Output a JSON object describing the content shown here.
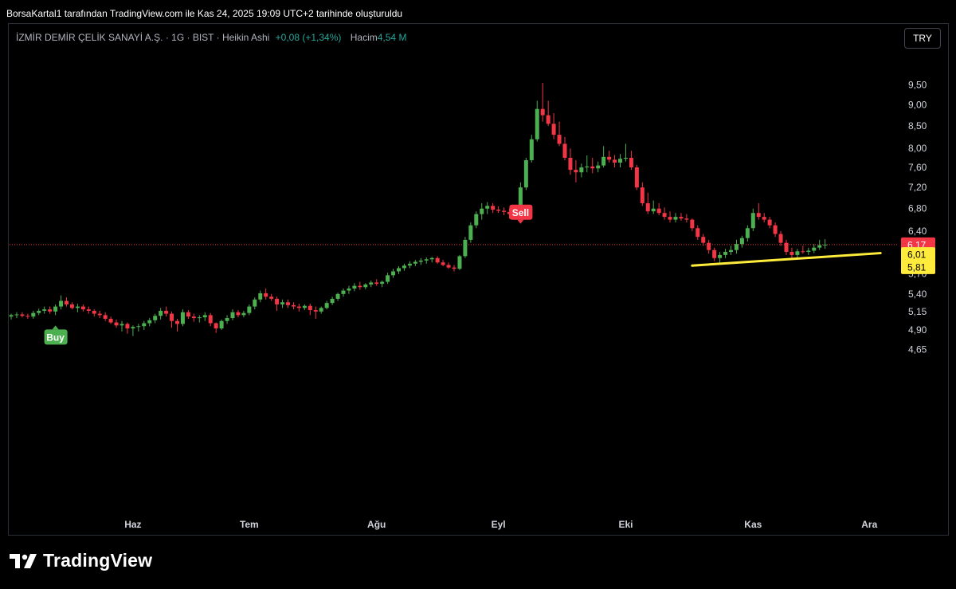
{
  "caption": "BorsaKartal1 tarafından TradingView.com ile Kas 24, 2025 19:09 UTC+2 tarihinde oluşturuldu",
  "legend": {
    "symbol": "İZMİR DEMİR ÇELİK SANAYİ A.Ş. · 1G · BIST · Heikin Ashi",
    "change": "+0,08 (+1,34%)",
    "volume_label": "Hacim",
    "volume_value": "4,54 M"
  },
  "currency_button": "TRY",
  "brand": "TradingView",
  "colors": {
    "up": "#4caf50",
    "down": "#f23645",
    "trendline": "#ffeb3b",
    "current_price_line": "#f23645",
    "axis_text": "#d1d4dc"
  },
  "chart_data": {
    "type": "candlestick",
    "style": "Heikin Ashi",
    "x_ticks": [
      {
        "label": "Haz",
        "index": 22
      },
      {
        "label": "Tem",
        "index": 43
      },
      {
        "label": "Ağu",
        "index": 66
      },
      {
        "label": "Eyl",
        "index": 88
      },
      {
        "label": "Eki",
        "index": 111
      },
      {
        "label": "Kas",
        "index": 134
      },
      {
        "label": "Ara",
        "index": 155
      }
    ],
    "y_ticks": [
      "9,50",
      "9,00",
      "8,50",
      "8,00",
      "7,60",
      "7,20",
      "6,80",
      "6,40",
      "5,70",
      "5,40",
      "5,15",
      "4,90",
      "4,65"
    ],
    "y_tick_values": [
      9.5,
      9.0,
      8.5,
      8.0,
      7.6,
      7.2,
      6.8,
      6.4,
      5.7,
      5.4,
      5.15,
      4.9,
      4.65
    ],
    "scale": "log",
    "price_labels": [
      {
        "text": "6,17",
        "value": 6.17,
        "kind": "current"
      },
      {
        "text": "6,01",
        "value": 6.01,
        "kind": "trendline"
      },
      {
        "text": "5,81",
        "value": 5.81,
        "kind": "trendline"
      }
    ],
    "signals": [
      {
        "text": "Buy",
        "index": 8,
        "kind": "buy"
      },
      {
        "text": "Sell",
        "index": 92,
        "kind": "sell"
      }
    ],
    "trendline": {
      "from": {
        "index": 123,
        "value": 5.83
      },
      "to": {
        "index": 157,
        "value": 6.03
      }
    },
    "candles": [
      [
        5.08,
        5.12,
        5.04,
        5.1
      ],
      [
        5.1,
        5.14,
        5.06,
        5.11
      ],
      [
        5.11,
        5.14,
        5.07,
        5.09
      ],
      [
        5.09,
        5.12,
        5.05,
        5.08
      ],
      [
        5.08,
        5.16,
        5.05,
        5.13
      ],
      [
        5.13,
        5.19,
        5.1,
        5.16
      ],
      [
        5.16,
        5.22,
        5.12,
        5.18
      ],
      [
        5.18,
        5.22,
        5.12,
        5.15
      ],
      [
        5.15,
        5.25,
        5.1,
        5.22
      ],
      [
        5.22,
        5.38,
        5.18,
        5.3
      ],
      [
        5.3,
        5.35,
        5.22,
        5.25
      ],
      [
        5.25,
        5.28,
        5.18,
        5.2
      ],
      [
        5.2,
        5.26,
        5.14,
        5.22
      ],
      [
        5.22,
        5.25,
        5.15,
        5.18
      ],
      [
        5.18,
        5.22,
        5.12,
        5.16
      ],
      [
        5.16,
        5.18,
        5.08,
        5.12
      ],
      [
        5.12,
        5.16,
        5.06,
        5.1
      ],
      [
        5.1,
        5.14,
        5.02,
        5.05
      ],
      [
        5.05,
        5.08,
        4.98,
        5.0
      ],
      [
        5.0,
        5.04,
        4.93,
        4.96
      ],
      [
        4.96,
        5.02,
        4.88,
        4.98
      ],
      [
        4.98,
        5.0,
        4.85,
        4.92
      ],
      [
        4.92,
        4.96,
        4.82,
        4.94
      ],
      [
        4.94,
        4.98,
        4.88,
        4.95
      ],
      [
        4.95,
        5.02,
        4.9,
        4.99
      ],
      [
        4.99,
        5.06,
        4.95,
        5.03
      ],
      [
        5.03,
        5.12,
        4.99,
        5.09
      ],
      [
        5.09,
        5.2,
        5.04,
        5.16
      ],
      [
        5.16,
        5.22,
        5.08,
        5.12
      ],
      [
        5.12,
        5.15,
        4.93,
        5.02
      ],
      [
        5.02,
        5.05,
        4.88,
        4.98
      ],
      [
        4.98,
        5.18,
        4.95,
        5.14
      ],
      [
        5.14,
        5.17,
        5.05,
        5.08
      ],
      [
        5.08,
        5.12,
        5.01,
        5.06
      ],
      [
        5.06,
        5.1,
        5.0,
        5.07
      ],
      [
        5.07,
        5.14,
        5.02,
        5.1
      ],
      [
        5.1,
        5.13,
        4.95,
        4.99
      ],
      [
        4.99,
        5.0,
        4.86,
        4.92
      ],
      [
        4.92,
        5.04,
        4.9,
        5.02
      ],
      [
        5.02,
        5.1,
        4.98,
        5.06
      ],
      [
        5.06,
        5.18,
        5.03,
        5.14
      ],
      [
        5.14,
        5.17,
        5.07,
        5.1
      ],
      [
        5.1,
        5.16,
        5.07,
        5.13
      ],
      [
        5.13,
        5.25,
        5.1,
        5.22
      ],
      [
        5.22,
        5.35,
        5.18,
        5.32
      ],
      [
        5.32,
        5.45,
        5.28,
        5.41
      ],
      [
        5.41,
        5.48,
        5.32,
        5.36
      ],
      [
        5.36,
        5.4,
        5.3,
        5.33
      ],
      [
        5.33,
        5.36,
        5.16,
        5.25
      ],
      [
        5.25,
        5.32,
        5.2,
        5.28
      ],
      [
        5.28,
        5.32,
        5.2,
        5.24
      ],
      [
        5.24,
        5.28,
        5.18,
        5.22
      ],
      [
        5.22,
        5.26,
        5.15,
        5.2
      ],
      [
        5.2,
        5.25,
        5.17,
        5.23
      ],
      [
        5.23,
        5.26,
        5.1,
        5.17
      ],
      [
        5.17,
        5.22,
        5.05,
        5.15
      ],
      [
        5.15,
        5.22,
        5.12,
        5.2
      ],
      [
        5.2,
        5.3,
        5.18,
        5.27
      ],
      [
        5.27,
        5.36,
        5.24,
        5.33
      ],
      [
        5.33,
        5.42,
        5.3,
        5.4
      ],
      [
        5.4,
        5.48,
        5.36,
        5.45
      ],
      [
        5.45,
        5.52,
        5.4,
        5.48
      ],
      [
        5.48,
        5.56,
        5.44,
        5.52
      ],
      [
        5.52,
        5.58,
        5.46,
        5.5
      ],
      [
        5.5,
        5.56,
        5.47,
        5.54
      ],
      [
        5.54,
        5.6,
        5.5,
        5.57
      ],
      [
        5.57,
        5.62,
        5.52,
        5.55
      ],
      [
        5.55,
        5.6,
        5.5,
        5.58
      ],
      [
        5.58,
        5.72,
        5.55,
        5.68
      ],
      [
        5.68,
        5.78,
        5.64,
        5.74
      ],
      [
        5.74,
        5.82,
        5.7,
        5.79
      ],
      [
        5.79,
        5.86,
        5.75,
        5.83
      ],
      [
        5.83,
        5.9,
        5.79,
        5.86
      ],
      [
        5.86,
        5.92,
        5.82,
        5.89
      ],
      [
        5.89,
        5.95,
        5.84,
        5.91
      ],
      [
        5.91,
        5.96,
        5.86,
        5.93
      ],
      [
        5.93,
        5.97,
        5.88,
        5.95
      ],
      [
        5.95,
        5.98,
        5.86,
        5.88
      ],
      [
        5.88,
        5.92,
        5.82,
        5.84
      ],
      [
        5.84,
        5.88,
        5.78,
        5.8
      ],
      [
        5.8,
        5.84,
        5.74,
        5.78
      ],
      [
        5.78,
        6.0,
        5.76,
        5.98
      ],
      [
        5.98,
        6.3,
        5.95,
        6.25
      ],
      [
        6.25,
        6.55,
        6.2,
        6.5
      ],
      [
        6.5,
        6.75,
        6.45,
        6.7
      ],
      [
        6.7,
        6.9,
        6.6,
        6.8
      ],
      [
        6.8,
        6.92,
        6.7,
        6.85
      ],
      [
        6.85,
        6.9,
        6.72,
        6.78
      ],
      [
        6.78,
        6.84,
        6.72,
        6.76
      ],
      [
        6.76,
        6.82,
        6.68,
        6.74
      ],
      [
        6.74,
        6.8,
        6.62,
        6.7
      ],
      [
        6.7,
        6.82,
        6.65,
        6.78
      ],
      [
        6.78,
        7.3,
        6.75,
        7.2
      ],
      [
        7.2,
        7.8,
        7.15,
        7.75
      ],
      [
        7.75,
        8.3,
        7.7,
        8.2
      ],
      [
        8.2,
        9.1,
        8.15,
        8.9
      ],
      [
        8.9,
        9.55,
        8.6,
        8.75
      ],
      [
        8.75,
        9.1,
        8.5,
        8.55
      ],
      [
        8.55,
        8.8,
        8.2,
        8.3
      ],
      [
        8.3,
        8.6,
        8.05,
        8.1
      ],
      [
        8.1,
        8.25,
        7.75,
        7.8
      ],
      [
        7.8,
        8.0,
        7.45,
        7.55
      ],
      [
        7.55,
        7.75,
        7.3,
        7.5
      ],
      [
        7.5,
        7.68,
        7.4,
        7.6
      ],
      [
        7.6,
        7.85,
        7.5,
        7.62
      ],
      [
        7.62,
        7.8,
        7.48,
        7.58
      ],
      [
        7.58,
        7.72,
        7.5,
        7.64
      ],
      [
        7.64,
        8.05,
        7.6,
        7.82
      ],
      [
        7.82,
        7.95,
        7.7,
        7.76
      ],
      [
        7.76,
        7.86,
        7.6,
        7.7
      ],
      [
        7.7,
        7.88,
        7.6,
        7.78
      ],
      [
        7.78,
        8.1,
        7.72,
        7.8
      ],
      [
        7.8,
        7.95,
        7.55,
        7.6
      ],
      [
        7.6,
        7.65,
        7.15,
        7.2
      ],
      [
        7.2,
        7.3,
        6.85,
        6.9
      ],
      [
        6.9,
        7.1,
        6.7,
        6.75
      ],
      [
        6.75,
        6.95,
        6.7,
        6.8
      ],
      [
        6.8,
        6.9,
        6.68,
        6.72
      ],
      [
        6.72,
        6.82,
        6.6,
        6.65
      ],
      [
        6.65,
        6.75,
        6.55,
        6.6
      ],
      [
        6.6,
        6.72,
        6.55,
        6.65
      ],
      [
        6.65,
        6.72,
        6.58,
        6.62
      ],
      [
        6.62,
        6.7,
        6.55,
        6.6
      ],
      [
        6.6,
        6.62,
        6.4,
        6.45
      ],
      [
        6.45,
        6.5,
        6.25,
        6.3
      ],
      [
        6.3,
        6.35,
        6.15,
        6.2
      ],
      [
        6.2,
        6.25,
        6.02,
        6.08
      ],
      [
        6.08,
        6.12,
        5.9,
        5.95
      ],
      [
        5.95,
        6.05,
        5.85,
        6.0
      ],
      [
        6.0,
        6.1,
        5.95,
        6.05
      ],
      [
        6.05,
        6.15,
        6.0,
        6.08
      ],
      [
        6.08,
        6.25,
        6.02,
        6.18
      ],
      [
        6.18,
        6.32,
        6.12,
        6.28
      ],
      [
        6.28,
        6.5,
        6.22,
        6.45
      ],
      [
        6.45,
        6.8,
        6.4,
        6.72
      ],
      [
        6.72,
        6.9,
        6.6,
        6.65
      ],
      [
        6.65,
        6.72,
        6.55,
        6.6
      ],
      [
        6.6,
        6.65,
        6.45,
        6.5
      ],
      [
        6.5,
        6.55,
        6.3,
        6.35
      ],
      [
        6.35,
        6.4,
        6.15,
        6.2
      ],
      [
        6.2,
        6.25,
        6.0,
        6.05
      ],
      [
        6.05,
        6.12,
        5.95,
        6.0
      ],
      [
        6.0,
        6.1,
        5.96,
        6.06
      ],
      [
        6.06,
        6.15,
        6.02,
        6.05
      ],
      [
        6.05,
        6.12,
        6.0,
        6.07
      ],
      [
        6.07,
        6.18,
        6.03,
        6.12
      ],
      [
        6.12,
        6.25,
        6.08,
        6.16
      ],
      [
        6.16,
        6.26,
        6.1,
        6.17
      ]
    ]
  }
}
